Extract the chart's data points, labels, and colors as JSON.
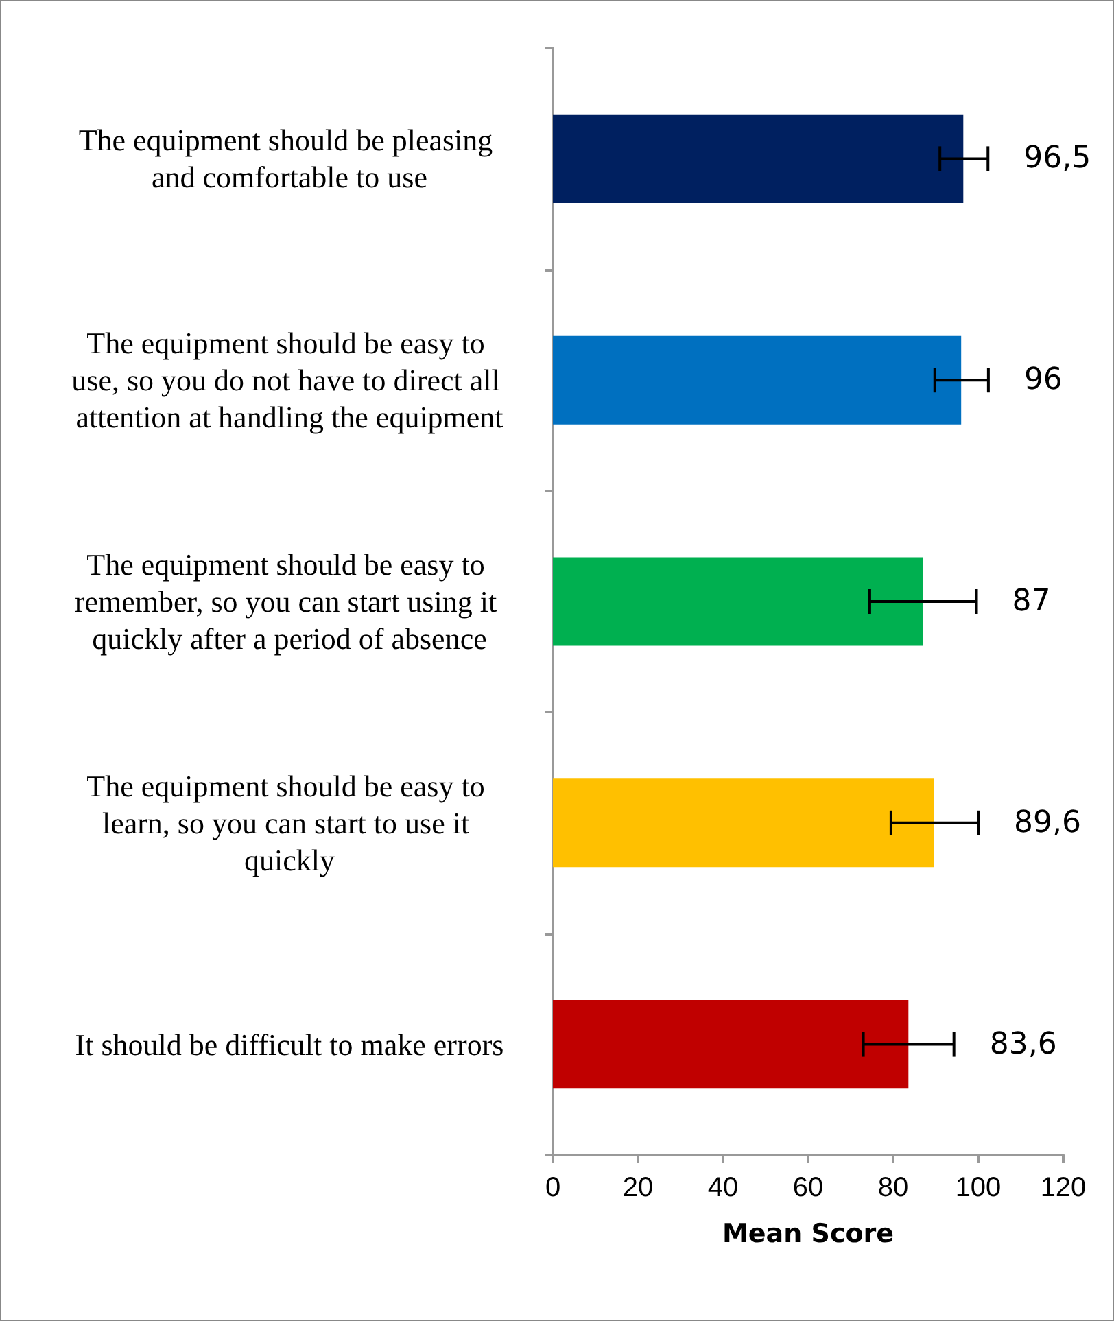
{
  "chart_data": {
    "type": "bar",
    "orientation": "horizontal",
    "xlabel": "Mean Score",
    "categories": [
      "The equipment should be pleasing and comfortable to use",
      "The equipment should be easy to use, so you do not have to direct all attention at handling the equipment",
      "The equipment should be easy to remember, so you can start using it quickly after a period of absence",
      "The equipment should be easy to learn, so you can start to use it quickly",
      "It should be difficult to make errors"
    ],
    "values": [
      96.5,
      96,
      87,
      89.6,
      83.6
    ],
    "colors": [
      "#002060",
      "#0070c0",
      "#00b050",
      "#ffc000",
      "#c00000"
    ],
    "errors": [
      [
        91,
        102.3
      ],
      [
        89.8,
        102.4
      ],
      [
        74.5,
        99.6
      ],
      [
        79.5,
        100
      ],
      [
        73,
        94.3
      ]
    ],
    "value_labels": [
      "96,5",
      "96",
      "87",
      "89,6",
      "83,6"
    ],
    "xlim": [
      0,
      120
    ],
    "xticks": [
      0,
      20,
      40,
      60,
      80,
      100,
      120
    ],
    "grid": false
  }
}
